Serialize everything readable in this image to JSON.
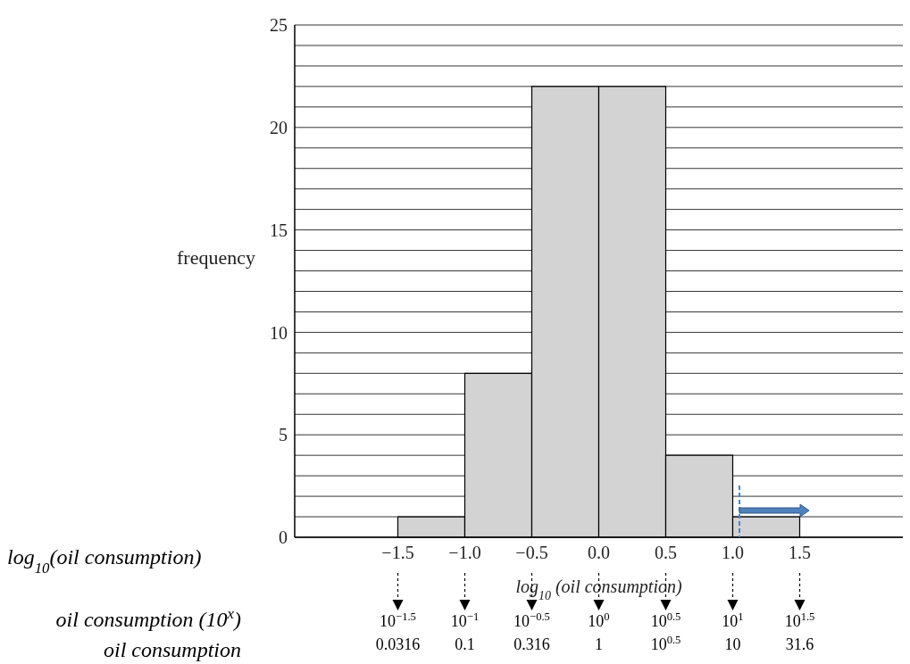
{
  "chart_data": {
    "type": "histogram",
    "bins": [
      -1.5,
      -1,
      -0.5,
      0,
      0.5,
      1,
      1.5
    ],
    "values": [
      1,
      8,
      22,
      22,
      4,
      1
    ],
    "color": "#d3d3d3",
    "xlim": [
      -2.27,
      2.27
    ],
    "xticks": [
      {
        "value": -1.5,
        "label": "−1.5"
      },
      {
        "value": -1,
        "label": "−1.0"
      },
      {
        "value": -0.5,
        "label": "−0.5"
      },
      {
        "value": 0,
        "label": "0.0"
      },
      {
        "value": 0.5,
        "label": "0.5"
      },
      {
        "value": 1,
        "label": "1.0"
      },
      {
        "value": 1.5,
        "label": "1.5"
      }
    ],
    "ylim": [
      0,
      25
    ],
    "yticks": [
      0,
      {
        "value": 1,
        "label": null
      },
      {
        "value": 2,
        "label": null
      },
      {
        "value": 3,
        "label": null
      },
      {
        "value": 4,
        "label": null
      },
      5,
      {
        "value": 6,
        "label": null
      },
      {
        "value": 7,
        "label": null
      },
      {
        "value": 8,
        "label": null
      },
      {
        "value": 9,
        "label": null
      },
      10,
      {
        "value": 11,
        "label": null
      },
      {
        "value": 12,
        "label": null
      },
      {
        "value": 13,
        "label": null
      },
      {
        "value": 14,
        "label": null
      },
      15,
      {
        "value": 16,
        "label": null
      },
      {
        "value": 17,
        "label": null
      },
      {
        "value": 18,
        "label": null
      },
      {
        "value": 19,
        "label": null
      },
      20,
      {
        "value": 21,
        "label": null
      },
      {
        "value": 22,
        "label": null
      },
      {
        "value": 23,
        "label": null
      },
      {
        "value": 24,
        "label": null
      },
      25
    ],
    "grid": "y",
    "ylabel": "frequency",
    "xlabel": "log$_{10}$ (oil consumption)",
    "annotations": [
      "log$_{10}$(oil consumption)",
      "oil consumption (10$^{x}$)",
      "oil consumption",
      "10$^{−1.5}$",
      "10$^{−1}$",
      "10$^{−0.5}$",
      "10$^{0}$",
      "10$^{0.5}$",
      "10$^{1}$",
      "10$^{1.5}$",
      "0.0316",
      "0.1",
      "0.316",
      "1",
      "10$^{0.5}$",
      "10",
      "31.6"
    ]
  }
}
